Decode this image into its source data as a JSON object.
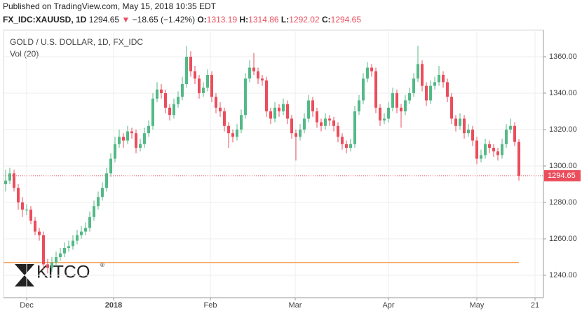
{
  "chart_data": {
    "type": "candlestick",
    "published": "Published on TradingView.com, May 15, 2018 10:35 EDT",
    "symbol": "FX_IDC:XAUUSD, 1D",
    "price": "1294.65",
    "arrow": "▼",
    "change": "−18.65 (−1.42%)",
    "ohlc": [
      {
        "label": "O:",
        "value": "1313.19"
      },
      {
        "label": "H:",
        "value": "1314.86"
      },
      {
        "label": "L:",
        "value": "1292.02"
      },
      {
        "label": "C:",
        "value": "1294.65"
      }
    ],
    "title": "GOLD / U.S. DOLLAR, 1D, FX_IDC",
    "subtitle": "Vol (20)",
    "logo": "KITCO",
    "logo_mark": "®",
    "up_color": "#53b987",
    "down_color": "#eb4d5c",
    "hline_color": "#f5a35c",
    "hline": 1247,
    "ylim": [
      1227.7,
      1374.6
    ],
    "yticks": [
      {
        "value": 1240,
        "label": "1240.00"
      },
      {
        "value": 1260,
        "label": "1260.00"
      },
      {
        "value": 1280,
        "label": "1280.00"
      },
      {
        "value": 1300,
        "label": "1300.00"
      },
      {
        "value": 1320,
        "label": "1320.00"
      },
      {
        "value": 1340,
        "label": "1340.00"
      },
      {
        "value": 1360,
        "label": "1360.00"
      }
    ],
    "xlim": [
      -0.5,
      127.83
    ],
    "xticks": [
      {
        "value": 5,
        "label": "Dec"
      },
      {
        "value": 25.67,
        "label": "2018"
      },
      {
        "value": 48.67,
        "label": "Feb"
      },
      {
        "value": 68.83,
        "label": "Mar"
      },
      {
        "value": 91,
        "label": "Apr"
      },
      {
        "value": 112,
        "label": "May"
      },
      {
        "value": 125.83,
        "label": "21"
      }
    ],
    "grid": true,
    "candles": [
      [
        1290,
        1298,
        1286,
        1292
      ],
      [
        1292,
        1299,
        1290,
        1296
      ],
      [
        1296,
        1298,
        1286,
        1288
      ],
      [
        1288,
        1290,
        1276,
        1280
      ],
      [
        1280,
        1283,
        1272,
        1276
      ],
      [
        1276,
        1279,
        1273,
        1276
      ],
      [
        1276,
        1278,
        1268,
        1270
      ],
      [
        1270,
        1272,
        1262,
        1264
      ],
      [
        1264,
        1266,
        1259,
        1262
      ],
      [
        1262,
        1264,
        1243,
        1246
      ],
      [
        1246,
        1249,
        1241,
        1244
      ],
      [
        1244,
        1250,
        1242,
        1247
      ],
      [
        1247,
        1253,
        1245,
        1250
      ],
      [
        1250,
        1255,
        1248,
        1252
      ],
      [
        1252,
        1258,
        1250,
        1255
      ],
      [
        1255,
        1259,
        1253,
        1256
      ],
      [
        1256,
        1262,
        1254,
        1259
      ],
      [
        1259,
        1265,
        1257,
        1262
      ],
      [
        1262,
        1267,
        1260,
        1264
      ],
      [
        1264,
        1269,
        1262,
        1266
      ],
      [
        1266,
        1275,
        1264,
        1272
      ],
      [
        1272,
        1281,
        1270,
        1278
      ],
      [
        1278,
        1286,
        1276,
        1283
      ],
      [
        1283,
        1291,
        1281,
        1288
      ],
      [
        1288,
        1299,
        1286,
        1296
      ],
      [
        1296,
        1307,
        1294,
        1304
      ],
      [
        1304,
        1316,
        1302,
        1312
      ],
      [
        1312,
        1320,
        1310,
        1316
      ],
      [
        1316,
        1318,
        1310,
        1314
      ],
      [
        1314,
        1322,
        1312,
        1319
      ],
      [
        1319,
        1321,
        1315,
        1318
      ],
      [
        1318,
        1320,
        1307,
        1310
      ],
      [
        1310,
        1315,
        1308,
        1312
      ],
      [
        1312,
        1321,
        1310,
        1318
      ],
      [
        1318,
        1325,
        1316,
        1322
      ],
      [
        1322,
        1340,
        1320,
        1337
      ],
      [
        1337,
        1346,
        1335,
        1342
      ],
      [
        1342,
        1345,
        1337,
        1340
      ],
      [
        1340,
        1342,
        1329,
        1332
      ],
      [
        1332,
        1334,
        1325,
        1328
      ],
      [
        1328,
        1337,
        1326,
        1334
      ],
      [
        1334,
        1341,
        1332,
        1338
      ],
      [
        1338,
        1349,
        1336,
        1345
      ],
      [
        1345,
        1366,
        1343,
        1360
      ],
      [
        1360,
        1363,
        1349,
        1352
      ],
      [
        1352,
        1355,
        1345,
        1348
      ],
      [
        1348,
        1350,
        1337,
        1340
      ],
      [
        1340,
        1346,
        1338,
        1343
      ],
      [
        1343,
        1353,
        1341,
        1350
      ],
      [
        1350,
        1352,
        1335,
        1338
      ],
      [
        1338,
        1340,
        1329,
        1332
      ],
      [
        1332,
        1335,
        1327,
        1330
      ],
      [
        1330,
        1332,
        1319,
        1322
      ],
      [
        1322,
        1324,
        1310,
        1318
      ],
      [
        1318,
        1320,
        1313,
        1316
      ],
      [
        1316,
        1323,
        1314,
        1320
      ],
      [
        1320,
        1331,
        1318,
        1328
      ],
      [
        1328,
        1351,
        1326,
        1348
      ],
      [
        1348,
        1358,
        1346,
        1354
      ],
      [
        1354,
        1362,
        1350,
        1352
      ],
      [
        1352,
        1354,
        1345,
        1348
      ],
      [
        1348,
        1350,
        1344,
        1347
      ],
      [
        1347,
        1349,
        1327,
        1330
      ],
      [
        1330,
        1332,
        1323,
        1326
      ],
      [
        1326,
        1335,
        1324,
        1332
      ],
      [
        1332,
        1334,
        1327,
        1330
      ],
      [
        1330,
        1337,
        1328,
        1334
      ],
      [
        1334,
        1336,
        1323,
        1326
      ],
      [
        1326,
        1328,
        1315,
        1318
      ],
      [
        1318,
        1320,
        1303,
        1316
      ],
      [
        1316,
        1323,
        1314,
        1320
      ],
      [
        1320,
        1329,
        1318,
        1326
      ],
      [
        1326,
        1339,
        1324,
        1336
      ],
      [
        1336,
        1338,
        1327,
        1330
      ],
      [
        1330,
        1332,
        1321,
        1324
      ],
      [
        1324,
        1326,
        1319,
        1322
      ],
      [
        1322,
        1329,
        1320,
        1326
      ],
      [
        1326,
        1328,
        1322,
        1325
      ],
      [
        1325,
        1327,
        1319,
        1322
      ],
      [
        1322,
        1324,
        1313,
        1316
      ],
      [
        1316,
        1318,
        1309,
        1312
      ],
      [
        1312,
        1314,
        1307,
        1310
      ],
      [
        1310,
        1315,
        1308,
        1312
      ],
      [
        1312,
        1333,
        1310,
        1330
      ],
      [
        1330,
        1339,
        1328,
        1336
      ],
      [
        1336,
        1351,
        1334,
        1348
      ],
      [
        1348,
        1357,
        1346,
        1354
      ],
      [
        1354,
        1356,
        1349,
        1352
      ],
      [
        1352,
        1354,
        1329,
        1332
      ],
      [
        1332,
        1334,
        1322,
        1325
      ],
      [
        1325,
        1329,
        1323,
        1326
      ],
      [
        1326,
        1335,
        1324,
        1332
      ],
      [
        1332,
        1343,
        1330,
        1340
      ],
      [
        1340,
        1342,
        1329,
        1332
      ],
      [
        1332,
        1334,
        1321,
        1330
      ],
      [
        1330,
        1339,
        1328,
        1336
      ],
      [
        1336,
        1343,
        1334,
        1340
      ],
      [
        1340,
        1351,
        1338,
        1348
      ],
      [
        1348,
        1366,
        1346,
        1356
      ],
      [
        1356,
        1358,
        1341,
        1344
      ],
      [
        1344,
        1346,
        1333,
        1336
      ],
      [
        1336,
        1347,
        1334,
        1344
      ],
      [
        1344,
        1349,
        1342,
        1346
      ],
      [
        1346,
        1355,
        1344,
        1350
      ],
      [
        1350,
        1352,
        1343,
        1346
      ],
      [
        1346,
        1348,
        1335,
        1338
      ],
      [
        1338,
        1340,
        1323,
        1326
      ],
      [
        1326,
        1328,
        1319,
        1322
      ],
      [
        1322,
        1329,
        1320,
        1326
      ],
      [
        1326,
        1328,
        1315,
        1318
      ],
      [
        1318,
        1323,
        1316,
        1320
      ],
      [
        1320,
        1322,
        1311,
        1314
      ],
      [
        1314,
        1316,
        1301,
        1304
      ],
      [
        1304,
        1309,
        1302,
        1306
      ],
      [
        1306,
        1315,
        1304,
        1312
      ],
      [
        1312,
        1314,
        1307,
        1310
      ],
      [
        1310,
        1312,
        1305,
        1308
      ],
      [
        1308,
        1310,
        1303,
        1306
      ],
      [
        1306,
        1315,
        1304,
        1312
      ],
      [
        1312,
        1323,
        1310,
        1320
      ],
      [
        1320,
        1326,
        1318,
        1322
      ],
      [
        1322,
        1324,
        1311,
        1313.19
      ],
      [
        1313.19,
        1314.86,
        1292.02,
        1294.65
      ]
    ]
  }
}
